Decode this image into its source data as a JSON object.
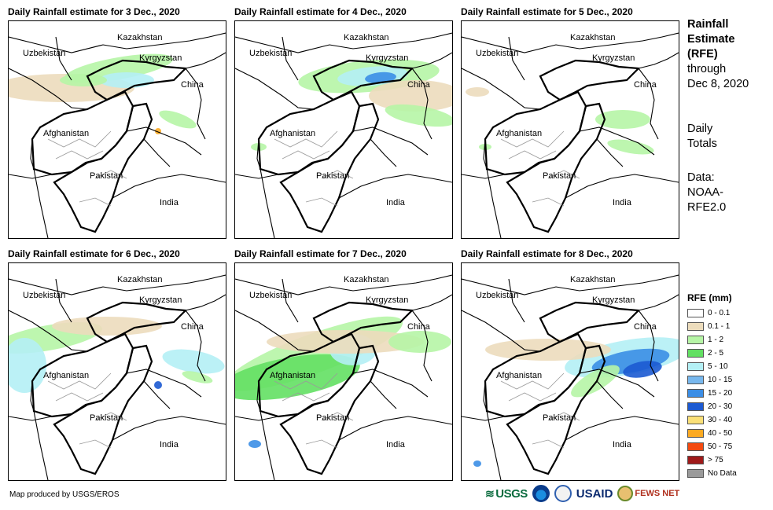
{
  "panels": [
    {
      "title": "Daily Rainfall estimate for 3 Dec., 2020"
    },
    {
      "title": "Daily Rainfall estimate for 4 Dec., 2020"
    },
    {
      "title": "Daily Rainfall estimate for 5 Dec., 2020"
    },
    {
      "title": "Daily Rainfall estimate for 6 Dec., 2020"
    },
    {
      "title": "Daily Rainfall estimate for 7 Dec., 2020"
    },
    {
      "title": "Daily Rainfall estimate for 8 Dec., 2020"
    }
  ],
  "map_labels": {
    "kazakhstan": "Kazakhstan",
    "uzbekistan": "Uzbekistan",
    "kyrgyzstan": "Kyrgyzstan",
    "china": "China",
    "afghanistan": "Afghanistan",
    "pakistan": "Pakistan",
    "india": "India"
  },
  "side_text": {
    "title_lines": [
      "Rainfall",
      "Estimate",
      "(RFE)"
    ],
    "through": "through",
    "date": "Dec 8, 2020",
    "daily_lines": [
      "Daily",
      "Totals"
    ],
    "data_lines": [
      "Data:",
      "NOAA-",
      "RFE2.0"
    ]
  },
  "legend": {
    "title": "RFE (mm)",
    "items": [
      {
        "label": "0 - 0.1",
        "color": "#ffffff"
      },
      {
        "label": "0.1 - 1",
        "color": "#ecdcbc"
      },
      {
        "label": "1 - 2",
        "color": "#b6f5a6"
      },
      {
        "label": "2 - 5",
        "color": "#63e063"
      },
      {
        "label": "5 - 10",
        "color": "#b4f0f5"
      },
      {
        "label": "10 - 15",
        "color": "#78b8ee"
      },
      {
        "label": "15 - 20",
        "color": "#3b8ee6"
      },
      {
        "label": "20 - 30",
        "color": "#1c5ad2"
      },
      {
        "label": "30 - 40",
        "color": "#fae078"
      },
      {
        "label": "40 - 50",
        "color": "#fcaa22"
      },
      {
        "label": "50 - 75",
        "color": "#f44a10"
      },
      {
        "label": "> 75",
        "color": "#a01a1a"
      },
      {
        "label": "No Data",
        "color": "#9a9a9a"
      }
    ]
  },
  "credit": "Map produced by USGS/EROS",
  "logos": {
    "usgs": "USGS",
    "usaid": "USAID",
    "fews": "FEWS NET"
  }
}
